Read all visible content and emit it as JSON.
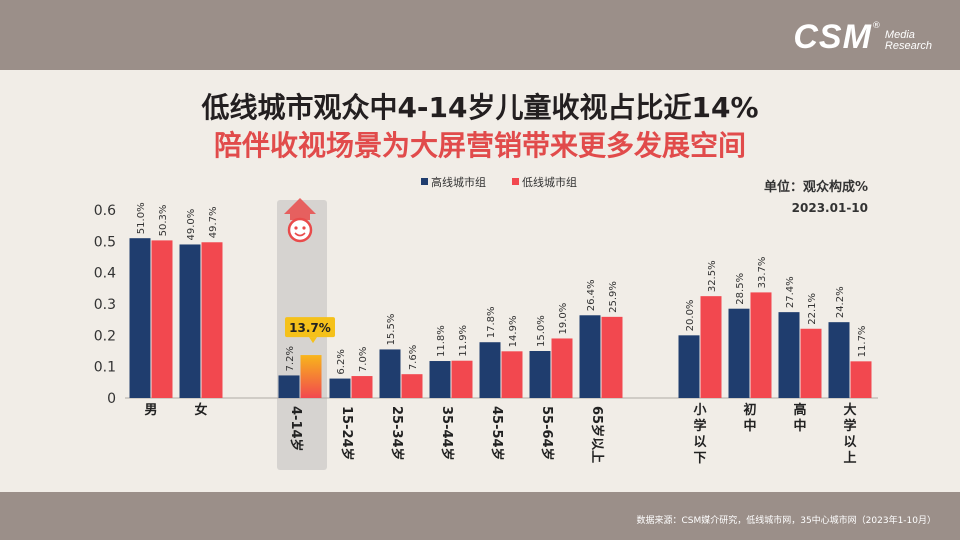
{
  "header": {
    "logo_text": "CSM",
    "logo_sub_line1": "Media",
    "logo_sub_line2": "Research",
    "logo_reg": "®"
  },
  "title_line1": "低线城市观众中4-14岁儿童收视占比近14%",
  "title_line2": "陪伴收视场景为大屏营销带来更多发展空间",
  "unit_label": "单位：观众构成%",
  "period_label": "2023.01-10",
  "source": "数据来源：CSM媒介研究，低线城市网，35中心城市网（2023年1-10月）",
  "highlight_value": "13.7%",
  "colors": {
    "high_tier": "#1f3d6e",
    "low_tier": "#f2484f",
    "highlight_badge": "#f5c11a",
    "highlight_column": "#d6d3d0"
  },
  "chart_data": {
    "type": "bar",
    "categories": [
      "男",
      "女",
      "4-14岁",
      "15-24岁",
      "25-34岁",
      "35-44岁",
      "45-54岁",
      "55-64岁",
      "65岁以上",
      "小学以下",
      "初中",
      "高中",
      "大学以上"
    ],
    "series": [
      {
        "name": "高线城市组",
        "values": [
          0.51,
          0.49,
          0.072,
          0.062,
          0.155,
          0.118,
          0.178,
          0.15,
          0.264,
          0.2,
          0.285,
          0.274,
          0.242
        ],
        "labels": [
          "51.0%",
          "49.0%",
          "7.2%",
          "6.2%",
          "15.5%",
          "11.8%",
          "17.8%",
          "15.0%",
          "26.4%",
          "20.0%",
          "28.5%",
          "27.4%",
          "24.2%"
        ]
      },
      {
        "name": "低线城市组",
        "values": [
          0.503,
          0.497,
          0.137,
          0.07,
          0.076,
          0.119,
          0.149,
          0.19,
          0.259,
          0.325,
          0.337,
          0.221,
          0.117
        ],
        "labels": [
          "50.3%",
          "49.7%",
          "",
          "7.0%",
          "7.6%",
          "11.9%",
          "14.9%",
          "19.0%",
          "25.9%",
          "32.5%",
          "33.7%",
          "22.1%",
          "11.7%"
        ]
      }
    ],
    "ylim": [
      0,
      0.6
    ],
    "yticks": [
      "0",
      "0.1",
      "0.2",
      "0.3",
      "0.4",
      "0.5",
      "0.6"
    ],
    "grid": false,
    "legend": "top-center"
  }
}
